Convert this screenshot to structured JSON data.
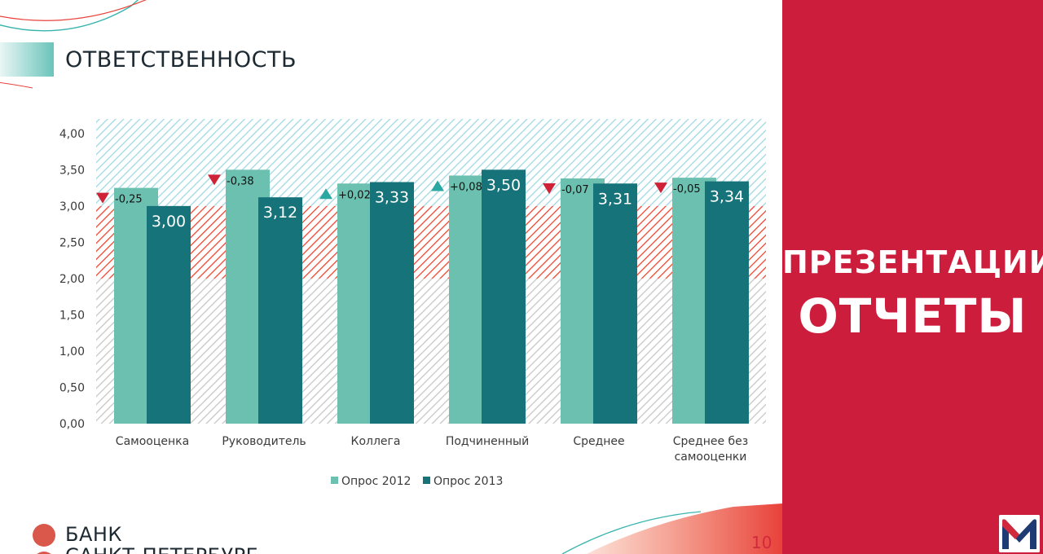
{
  "slide": {
    "title": "ОТВЕТСТВЕННОСТЬ",
    "page_number": "10",
    "logo_line1": "БАНК",
    "logo_line2": "САНКТ-ПЕТЕРБУРГ"
  },
  "side_panel": {
    "line1": "ПРЕЗЕНТАЦИИ",
    "line2": "ОТЧЕТЫ",
    "background": "#cd1d3d",
    "logo_icon": "m-logo-icon"
  },
  "colors": {
    "series_2012": "#6cc0b0",
    "series_2013": "#17737a",
    "down_marker": "#cf2236",
    "up_marker": "#2aa7a1",
    "band_top": "#9fd9e4",
    "band_mid": "#ee4631",
    "band_low": "#c7c7c7"
  },
  "chart_data": {
    "type": "bar",
    "categories": [
      "Самооценка",
      "Руководитель",
      "Коллега",
      "Подчиненный",
      "Среднее",
      "Среднее без\nсамооценки"
    ],
    "series": [
      {
        "name": "Опрос 2012",
        "values": [
          3.25,
          3.5,
          3.31,
          3.42,
          3.38,
          3.39
        ]
      },
      {
        "name": "Опрос 2013",
        "values": [
          3.0,
          3.12,
          3.33,
          3.5,
          3.31,
          3.34
        ]
      }
    ],
    "value_labels": [
      "3,00",
      "3,12",
      "3,33",
      "3,50",
      "3,31",
      "3,34"
    ],
    "changes": [
      {
        "label": "-0,25",
        "direction": "down"
      },
      {
        "label": "-0,38",
        "direction": "down"
      },
      {
        "label": "+0,02",
        "direction": "up"
      },
      {
        "label": "+0,08",
        "direction": "up"
      },
      {
        "label": "-0,07",
        "direction": "down"
      },
      {
        "label": "-0,05",
        "direction": "down"
      }
    ],
    "y_ticks": [
      "0,00",
      "0,50",
      "1,00",
      "1,50",
      "2,00",
      "2,50",
      "3,00",
      "3,50",
      "4,00"
    ],
    "ylim": [
      0,
      4.2
    ],
    "background_bands": [
      {
        "from": 0,
        "to": 2,
        "pattern": "hatched",
        "color": "#c7c7c7"
      },
      {
        "from": 2,
        "to": 3,
        "pattern": "hatched",
        "color": "#ee4631"
      },
      {
        "from": 3,
        "to": 4.2,
        "pattern": "hatched",
        "color": "#9fd9e4"
      }
    ],
    "legend_position": "bottom",
    "grid": false
  }
}
